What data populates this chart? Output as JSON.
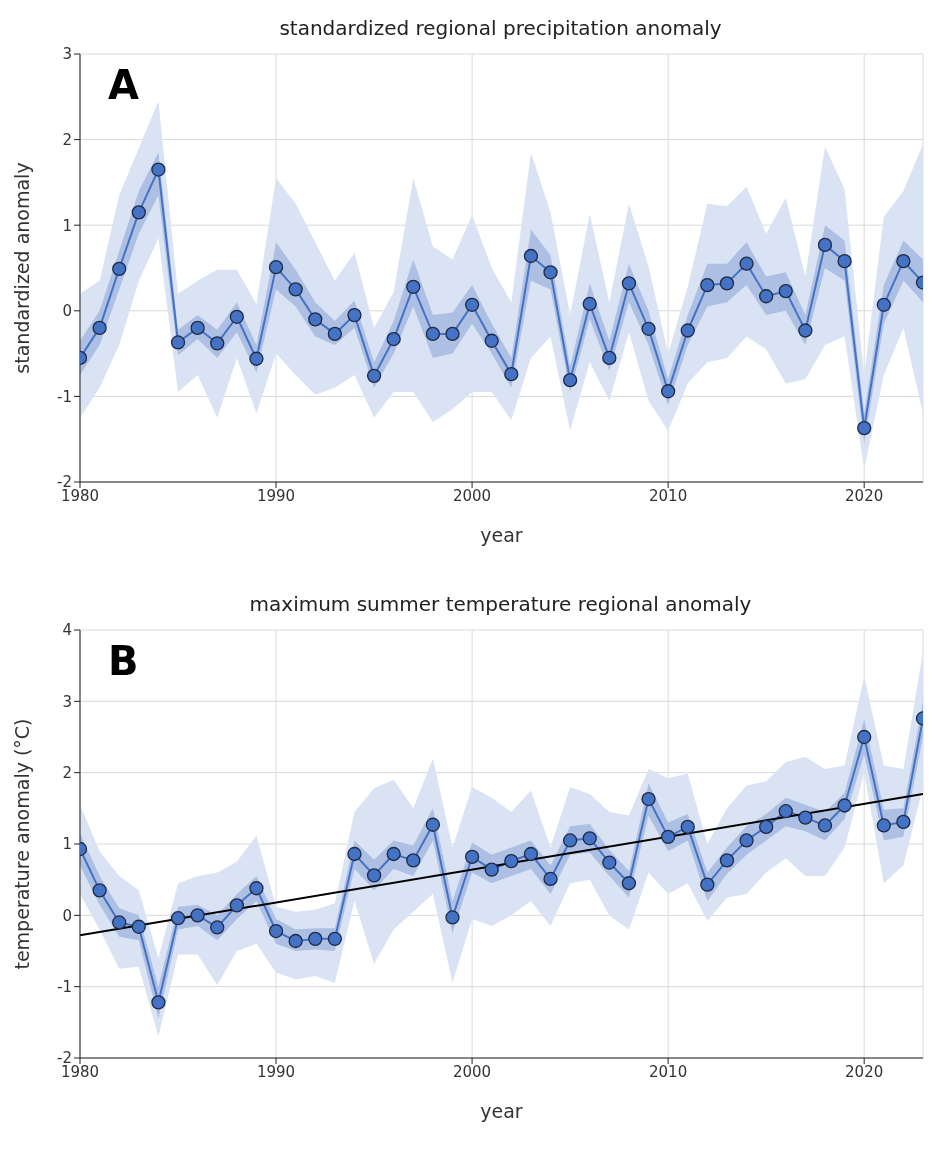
{
  "chart_data": [
    {
      "type": "line",
      "title": "standardized regional precipitation anomaly",
      "xlabel": "year",
      "ylabel": "standardized anomaly",
      "annotations": [
        "A"
      ],
      "x": [
        1980,
        1981,
        1982,
        1983,
        1984,
        1985,
        1986,
        1987,
        1988,
        1989,
        1990,
        1991,
        1992,
        1993,
        1994,
        1995,
        1996,
        1997,
        1998,
        1999,
        2000,
        2001,
        2002,
        2003,
        2004,
        2005,
        2006,
        2007,
        2008,
        2009,
        2010,
        2011,
        2012,
        2013,
        2014,
        2015,
        2016,
        2017,
        2018,
        2019,
        2020,
        2021,
        2022,
        2023
      ],
      "series": [
        {
          "type": "area",
          "color": "#dae3f3",
          "values": [
            null,
            null,
            null,
            null,
            null,
            null,
            null,
            null,
            null,
            null,
            null,
            null,
            null,
            null,
            null,
            null,
            null,
            null,
            null,
            null,
            null,
            null,
            null,
            null,
            null,
            null,
            null,
            null,
            null,
            null,
            null,
            null,
            null,
            null,
            null,
            null,
            null,
            null,
            null,
            null,
            null,
            null,
            null,
            null
          ],
          "lower": [
            -1.25,
            -0.9,
            -0.4,
            0.35,
            0.85,
            -0.95,
            -0.75,
            -1.25,
            -0.55,
            -1.2,
            -0.5,
            -0.75,
            -0.98,
            -0.9,
            -0.75,
            -1.25,
            -0.95,
            -0.95,
            -1.3,
            -1.15,
            -0.95,
            -0.95,
            -1.28,
            -0.55,
            -0.3,
            -1.4,
            -0.6,
            -1.05,
            -0.25,
            -1.05,
            -1.4,
            -0.85,
            -0.6,
            -0.55,
            -0.3,
            -0.45,
            -0.85,
            -0.8,
            -0.4,
            -0.3,
            -1.85,
            -0.75,
            -0.2,
            -1.2
          ],
          "upper": [
            0.2,
            0.35,
            1.35,
            1.9,
            2.45,
            0.2,
            0.35,
            0.48,
            0.48,
            0.08,
            1.55,
            1.25,
            0.8,
            0.35,
            0.68,
            -0.2,
            0.22,
            1.55,
            0.75,
            0.6,
            1.12,
            0.5,
            0.1,
            1.85,
            1.15,
            -0.05,
            1.13,
            0.1,
            1.25,
            0.52,
            -0.5,
            0.28,
            1.25,
            1.22,
            1.45,
            0.9,
            1.32,
            0.4,
            1.92,
            1.42,
            -0.75,
            1.1,
            1.4,
            1.95
          ]
        },
        {
          "color": "#4472c4",
          "values": [
            -0.55,
            -0.2,
            0.49,
            1.15,
            1.65,
            -0.37,
            -0.2,
            -0.38,
            -0.07,
            -0.56,
            0.51,
            0.25,
            -0.1,
            -0.27,
            -0.05,
            -0.76,
            -0.33,
            0.28,
            -0.27,
            -0.27,
            0.07,
            -0.35,
            -0.74,
            0.64,
            0.45,
            -0.81,
            0.08,
            -0.55,
            0.32,
            -0.21,
            -0.94,
            -0.23,
            0.3,
            0.32,
            0.55,
            0.17,
            0.23,
            -0.23,
            0.77,
            0.58,
            -1.37,
            0.07,
            0.58,
            0.33
          ],
          "lower": [
            -0.75,
            -0.4,
            0.25,
            0.9,
            1.35,
            -0.52,
            -0.33,
            -0.55,
            -0.25,
            -0.72,
            0.25,
            0.05,
            -0.3,
            -0.4,
            -0.2,
            -0.9,
            -0.5,
            0.05,
            -0.55,
            -0.5,
            -0.15,
            -0.5,
            -0.9,
            0.35,
            0.25,
            -0.95,
            -0.1,
            -0.7,
            0.1,
            -0.4,
            -1.1,
            -0.4,
            0.05,
            0.1,
            0.3,
            -0.05,
            0.0,
            -0.4,
            0.5,
            0.35,
            -1.55,
            -0.15,
            0.35,
            0.1
          ],
          "upper": [
            -0.35,
            0.0,
            0.7,
            1.4,
            1.85,
            -0.22,
            -0.05,
            -0.22,
            0.1,
            -0.4,
            0.8,
            0.48,
            0.1,
            -0.12,
            0.12,
            -0.6,
            -0.12,
            0.6,
            -0.05,
            -0.02,
            0.3,
            -0.15,
            -0.55,
            0.95,
            0.65,
            -0.65,
            0.32,
            -0.35,
            0.55,
            0.0,
            -0.8,
            -0.05,
            0.55,
            0.55,
            0.8,
            0.4,
            0.45,
            -0.05,
            1.0,
            0.82,
            -1.2,
            0.3,
            0.82,
            0.6
          ]
        }
      ],
      "xlim": [
        1980,
        2023
      ],
      "xticks": [
        1980,
        1990,
        2000,
        2010,
        2020
      ],
      "ylim": [
        -2,
        3
      ],
      "yticks": [
        -2,
        -1,
        0,
        1,
        2,
        3
      ],
      "grid": true,
      "marker": "circle"
    },
    {
      "type": "line",
      "title": "maximum summer temperature regional anomaly",
      "xlabel": "year",
      "ylabel": "temperature anomaly (°C)",
      "annotations": [
        "B"
      ],
      "x": [
        1980,
        1981,
        1982,
        1983,
        1984,
        1985,
        1986,
        1987,
        1988,
        1989,
        1990,
        1991,
        1992,
        1993,
        1994,
        1995,
        1996,
        1997,
        1998,
        1999,
        2000,
        2001,
        2002,
        2003,
        2004,
        2005,
        2006,
        2007,
        2008,
        2009,
        2010,
        2011,
        2012,
        2013,
        2014,
        2015,
        2016,
        2017,
        2018,
        2019,
        2020,
        2021,
        2022,
        2023
      ],
      "series": [
        {
          "type": "area",
          "color": "#dae3f3",
          "values": [
            null,
            null,
            null,
            null,
            null,
            null,
            null,
            null,
            null,
            null,
            null,
            null,
            null,
            null,
            null,
            null,
            null,
            null,
            null,
            null,
            null,
            null,
            null,
            null,
            null,
            null,
            null,
            null,
            null,
            null,
            null,
            null,
            null,
            null,
            null,
            null,
            null,
            null,
            null,
            null,
            null,
            null,
            null,
            null
          ],
          "lower": [
            0.3,
            -0.2,
            -0.75,
            -0.72,
            -1.7,
            -0.55,
            -0.55,
            -0.98,
            -0.5,
            -0.4,
            -0.8,
            -0.9,
            -0.85,
            -0.95,
            0.2,
            -0.68,
            -0.2,
            0.05,
            0.3,
            -0.95,
            -0.05,
            -0.15,
            0.0,
            0.2,
            -0.15,
            0.45,
            0.5,
            0.0,
            -0.2,
            0.6,
            0.3,
            0.45,
            -0.08,
            0.25,
            0.3,
            0.6,
            0.8,
            0.55,
            0.55,
            0.95,
            2.0,
            0.45,
            0.7,
            1.8
          ],
          "upper": [
            1.55,
            0.9,
            0.55,
            0.35,
            -0.6,
            0.45,
            0.55,
            0.6,
            0.75,
            1.12,
            0.12,
            0.05,
            0.08,
            0.17,
            1.45,
            1.78,
            1.9,
            1.5,
            2.2,
            0.95,
            1.8,
            1.65,
            1.45,
            1.75,
            0.95,
            1.8,
            1.7,
            1.45,
            1.4,
            2.05,
            1.92,
            1.99,
            1.0,
            1.5,
            1.82,
            1.88,
            2.15,
            2.22,
            2.05,
            2.1,
            3.35,
            2.1,
            2.05,
            3.7
          ]
        },
        {
          "color": "#4472c4",
          "values": [
            0.93,
            0.35,
            -0.1,
            -0.16,
            -1.22,
            -0.04,
            0.0,
            -0.17,
            0.14,
            0.38,
            -0.22,
            -0.36,
            -0.33,
            -0.33,
            0.86,
            0.56,
            0.86,
            0.77,
            1.27,
            -0.03,
            0.82,
            0.64,
            0.76,
            0.86,
            0.51,
            1.05,
            1.08,
            0.74,
            0.45,
            1.63,
            1.1,
            1.24,
            0.43,
            0.77,
            1.05,
            1.24,
            1.46,
            1.37,
            1.26,
            1.54,
            2.5,
            1.26,
            1.31,
            2.76
          ],
          "lower": [
            0.7,
            0.15,
            -0.3,
            -0.35,
            -1.45,
            -0.2,
            -0.15,
            -0.35,
            -0.05,
            0.2,
            -0.4,
            -0.5,
            -0.48,
            -0.5,
            0.65,
            0.35,
            0.65,
            0.55,
            1.05,
            -0.25,
            0.6,
            0.45,
            0.55,
            0.65,
            0.3,
            0.85,
            0.88,
            0.55,
            0.25,
            1.4,
            0.9,
            1.05,
            0.2,
            0.58,
            0.85,
            1.05,
            1.25,
            1.18,
            1.05,
            1.35,
            2.25,
            1.05,
            1.1,
            2.5
          ],
          "upper": [
            1.15,
            0.55,
            0.1,
            0.0,
            -1.0,
            0.12,
            0.15,
            0.0,
            0.3,
            0.55,
            -0.05,
            -0.2,
            -0.18,
            -0.18,
            1.05,
            0.78,
            1.05,
            0.98,
            1.5,
            0.2,
            1.02,
            0.85,
            0.95,
            1.05,
            0.7,
            1.25,
            1.28,
            0.92,
            0.62,
            1.85,
            1.3,
            1.42,
            0.6,
            0.95,
            1.25,
            1.42,
            1.65,
            1.55,
            1.45,
            1.72,
            2.75,
            1.48,
            1.5,
            3.0
          ]
        },
        {
          "type": "line",
          "color": "#000000",
          "marker": "none",
          "x": [
            1980,
            2023
          ],
          "values": [
            -0.28,
            1.7
          ]
        }
      ],
      "xlim": [
        1980,
        2023
      ],
      "xticks": [
        1980,
        1990,
        2000,
        2010,
        2020
      ],
      "ylim": [
        -2,
        4
      ],
      "yticks": [
        -2,
        -1,
        0,
        1,
        2,
        3,
        4
      ],
      "grid": true,
      "marker": "circle"
    }
  ]
}
